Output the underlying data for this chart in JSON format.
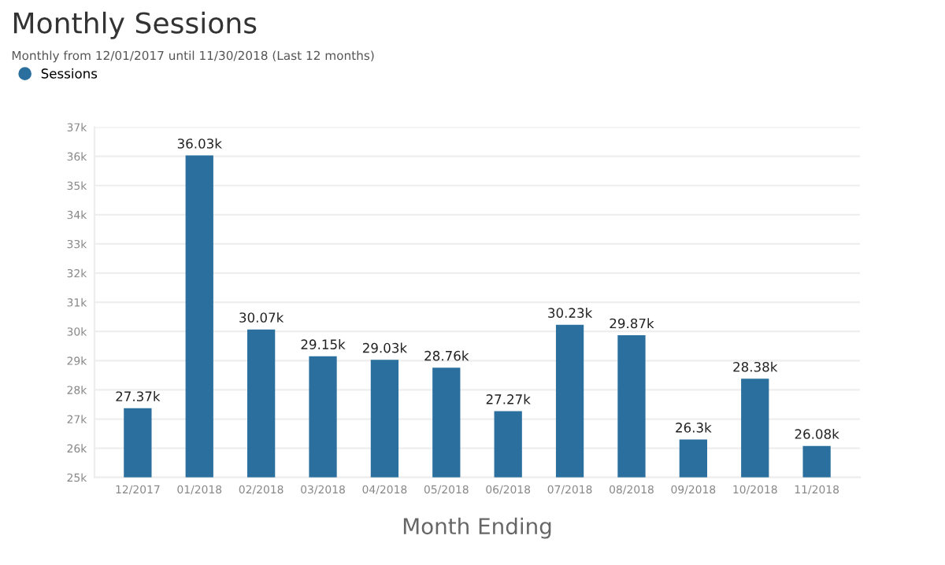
{
  "chart_data": {
    "type": "bar",
    "title": "Monthly Sessions",
    "subtitle": "Monthly from 12/01/2017 until 11/30/2018 (Last 12 months)",
    "xlabel": "Month Ending",
    "categories": [
      "12/2017",
      "01/2018",
      "02/2018",
      "03/2018",
      "04/2018",
      "05/2018",
      "06/2018",
      "07/2018",
      "08/2018",
      "09/2018",
      "10/2018",
      "11/2018"
    ],
    "series": [
      {
        "name": "Sessions",
        "color": "#2a6f9e",
        "values": [
          27.37,
          36.03,
          30.07,
          29.15,
          29.03,
          28.76,
          27.27,
          30.23,
          29.87,
          26.3,
          28.38,
          26.08
        ],
        "value_labels": [
          "27.37k",
          "36.03k",
          "30.07k",
          "29.15k",
          "29.03k",
          "28.76k",
          "27.27k",
          "30.23k",
          "29.87k",
          "26.3k",
          "28.38k",
          "26.08k"
        ]
      }
    ],
    "ylim": [
      25,
      37
    ],
    "yticks": [
      {
        "value": 25,
        "label": "25k"
      },
      {
        "value": 26,
        "label": "26k"
      },
      {
        "value": 27,
        "label": "27k"
      },
      {
        "value": 28,
        "label": "28k"
      },
      {
        "value": 29,
        "label": "29k"
      },
      {
        "value": 30,
        "label": "30k"
      },
      {
        "value": 31,
        "label": "31k"
      },
      {
        "value": 32,
        "label": "32k"
      },
      {
        "value": 33,
        "label": "33k"
      },
      {
        "value": 34,
        "label": "34k"
      },
      {
        "value": 35,
        "label": "35k"
      },
      {
        "value": 36,
        "label": "36k"
      },
      {
        "value": 37,
        "label": "37k"
      }
    ],
    "grid": "y",
    "legend": "top left"
  }
}
